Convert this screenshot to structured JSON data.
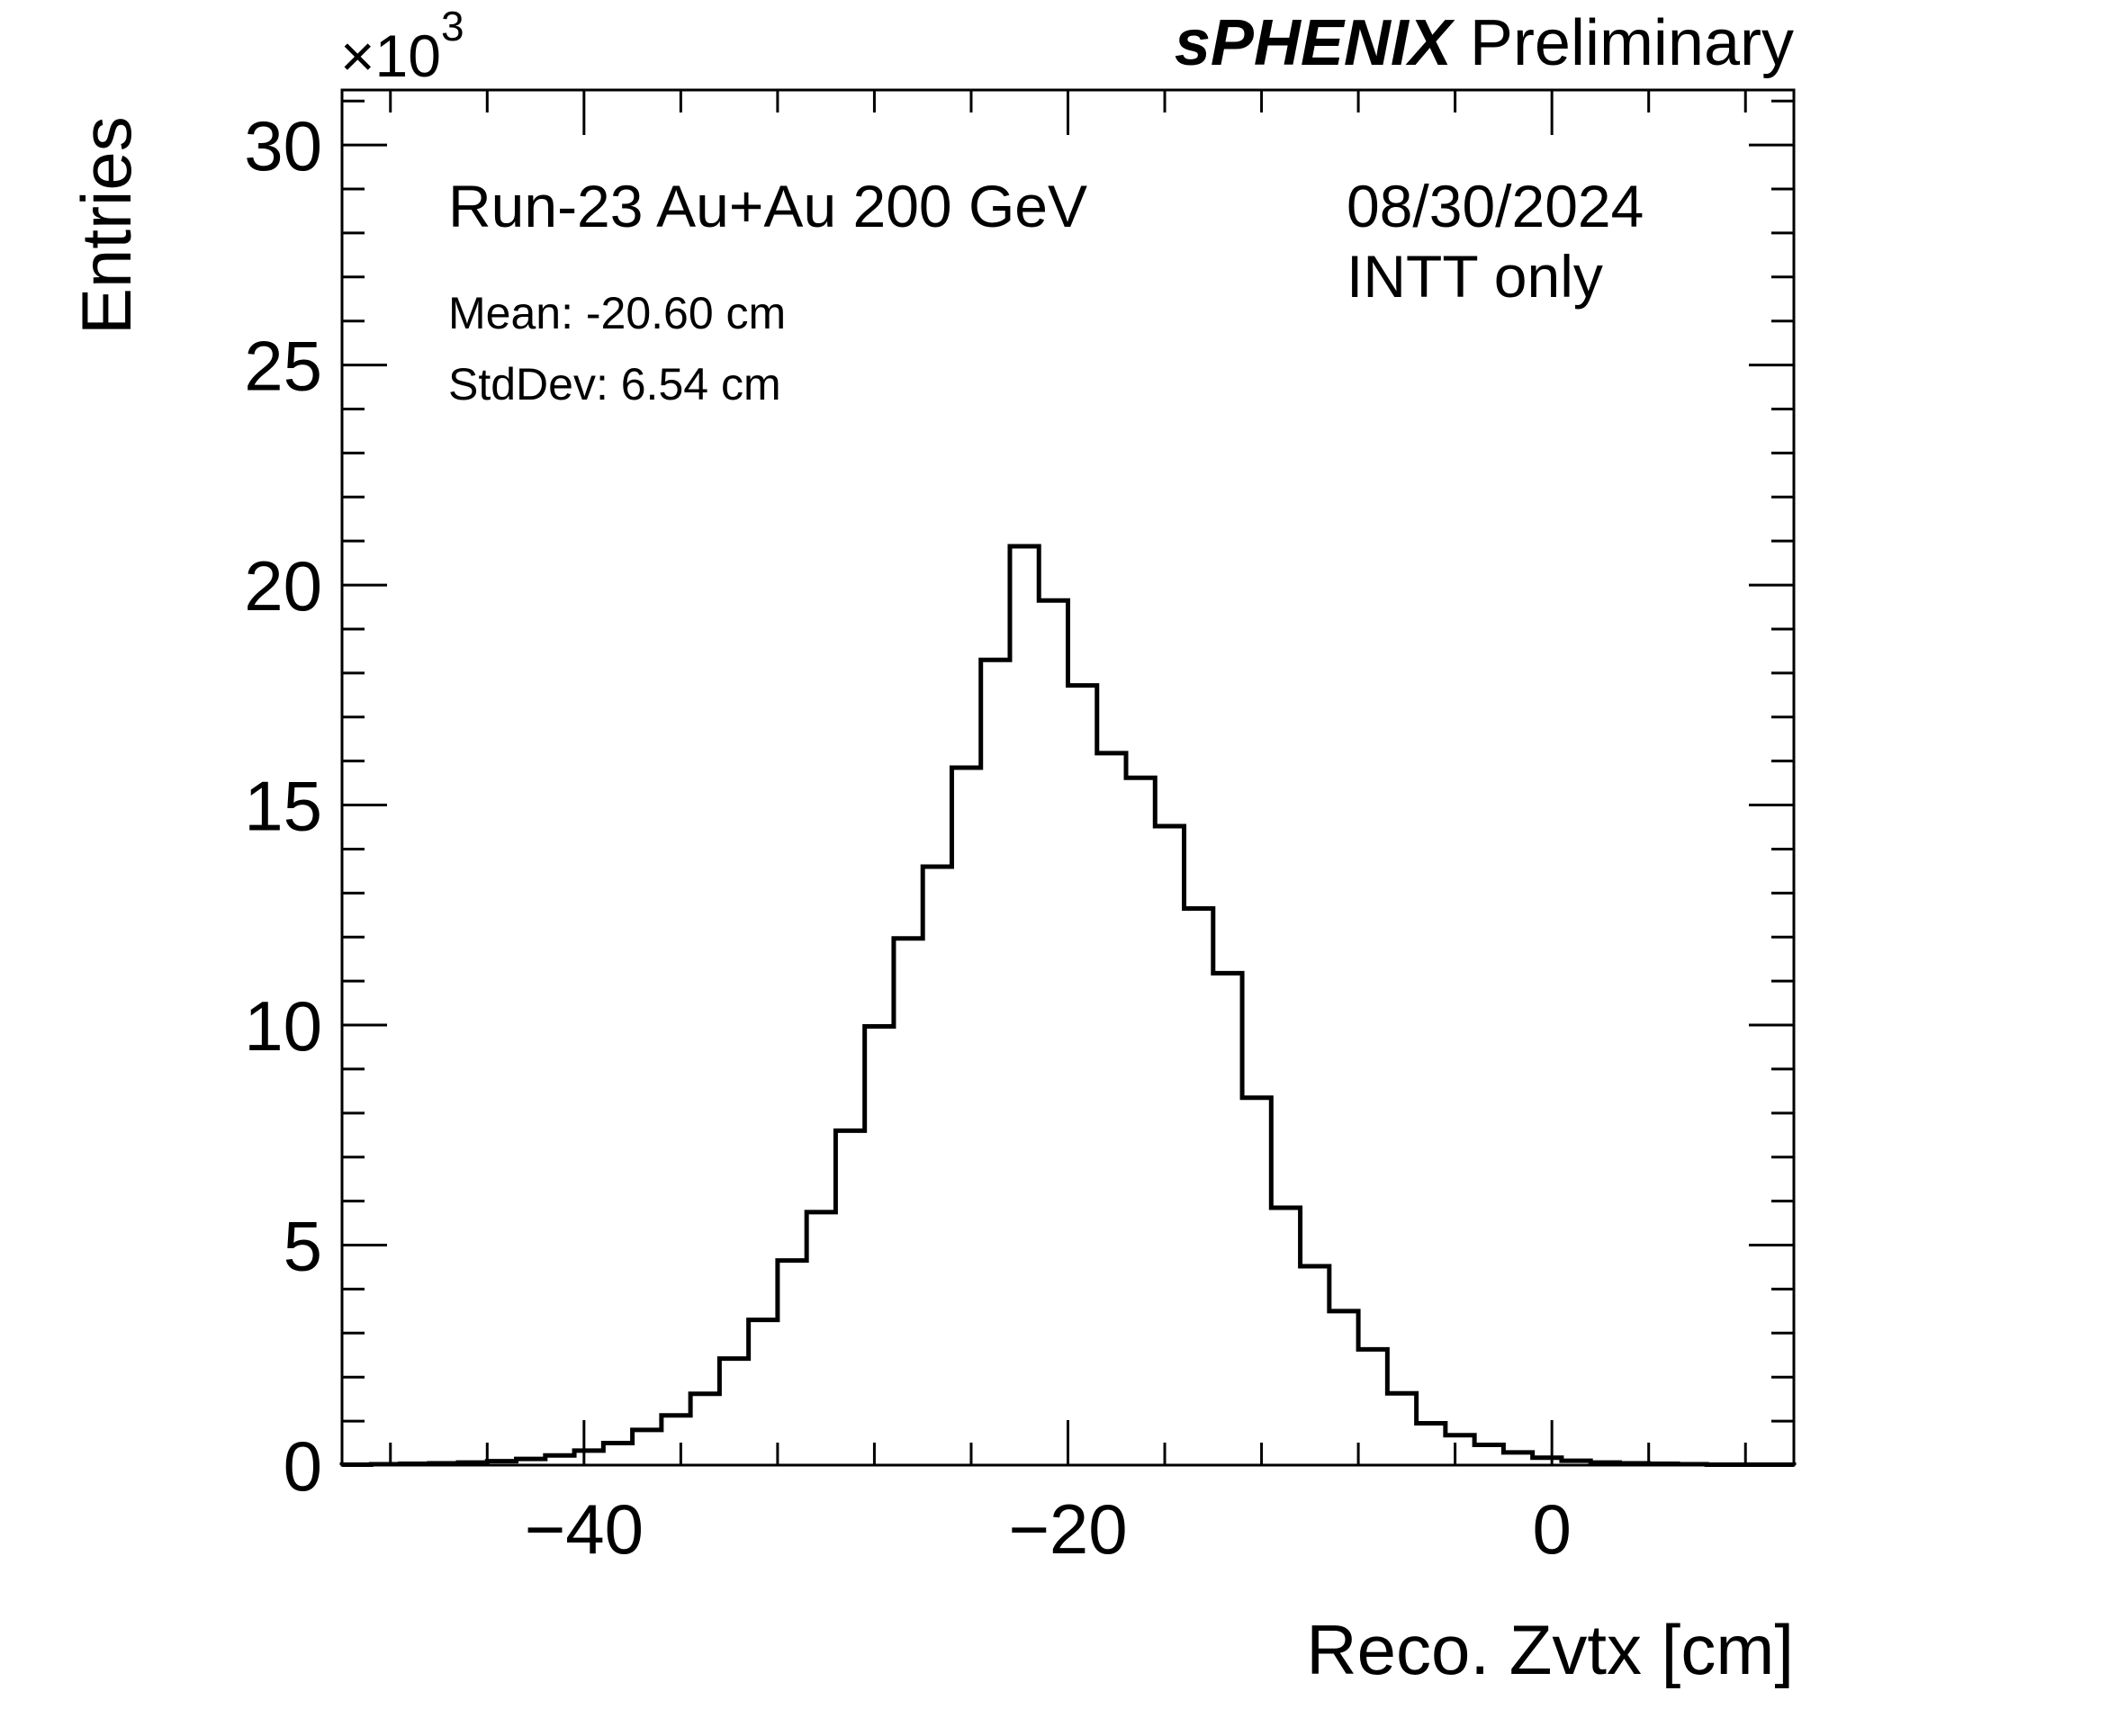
{
  "header": {
    "experiment": "sPHENIX",
    "status": "Preliminary"
  },
  "annotations": {
    "run": "Run-23 Au+Au 200 GeV",
    "date": "08/30/2024",
    "detector": "INTT only",
    "mean": "Mean: -20.60 cm",
    "stddev": "StdDev: 6.54 cm"
  },
  "chart_data": {
    "type": "histogram",
    "xlabel": "Reco. Zvtx [cm]",
    "ylabel": "Entries",
    "y_multiplier_base": "×10",
    "y_multiplier_exp": "3",
    "xlim": [
      -50,
      10
    ],
    "ylim": [
      0,
      31.25
    ],
    "bin_width": 1.2,
    "x_ticks": [
      -40,
      -20,
      0
    ],
    "x_tick_labels": [
      "−40",
      "−20",
      "0"
    ],
    "y_ticks": [
      0,
      5,
      10,
      15,
      20,
      25,
      30
    ],
    "y_tick_labels": [
      "0",
      "5",
      "10",
      "15",
      "20",
      "25",
      "30"
    ],
    "bin_edges": [
      -50.0,
      -48.8,
      -47.6,
      -46.4,
      -45.2,
      -44.0,
      -42.8,
      -41.6,
      -40.4,
      -39.2,
      -38.0,
      -36.8,
      -35.6,
      -34.4,
      -33.2,
      -32.0,
      -30.8,
      -29.6,
      -28.4,
      -27.2,
      -26.0,
      -24.8,
      -23.6,
      -22.4,
      -21.2,
      -20.0,
      -18.8,
      -17.6,
      -16.4,
      -15.2,
      -14.0,
      -12.8,
      -11.6,
      -10.4,
      -9.2,
      -8.0,
      -6.8,
      -5.6,
      -4.4,
      -3.2,
      -2.0,
      -0.8,
      0.4,
      1.6,
      2.8,
      4.0,
      5.2,
      6.4,
      7.6,
      8.8,
      10.0
    ],
    "values": [
      0.01,
      0.02,
      0.03,
      0.04,
      0.06,
      0.09,
      0.14,
      0.22,
      0.33,
      0.5,
      0.8,
      1.13,
      1.62,
      2.42,
      3.3,
      4.65,
      5.75,
      7.6,
      9.97,
      11.97,
      13.6,
      15.85,
      18.3,
      20.88,
      19.65,
      17.72,
      16.18,
      15.62,
      14.52,
      12.65,
      11.18,
      8.35,
      5.85,
      4.52,
      3.5,
      2.63,
      1.63,
      0.95,
      0.68,
      0.46,
      0.29,
      0.17,
      0.1,
      0.06,
      0.04,
      0.03,
      0.02,
      0.01,
      0.01,
      0.01
    ]
  }
}
